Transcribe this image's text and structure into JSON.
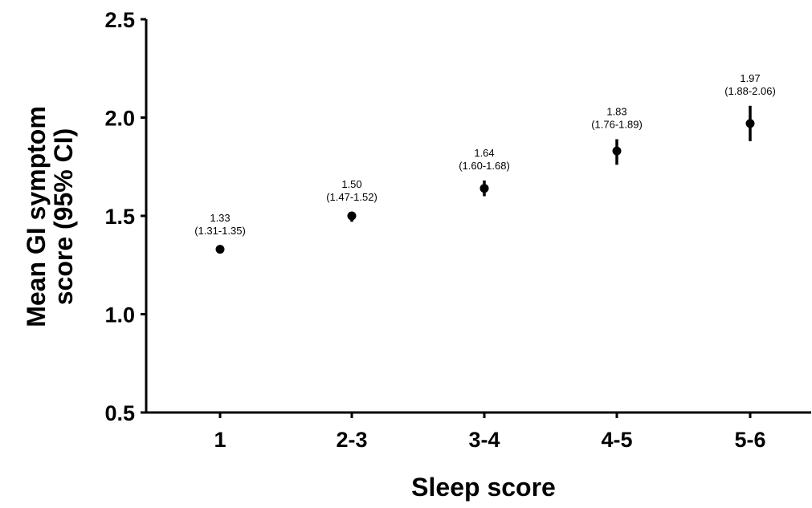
{
  "chart_data": {
    "type": "scatter",
    "title": "",
    "xlabel": "Sleep score",
    "ylabel_lines": [
      "Mean GI symptom",
      "score (95% CI)"
    ],
    "categories": [
      "1",
      "2-3",
      "3-4",
      "4-5",
      "5-6"
    ],
    "ylim": [
      0.5,
      2.5
    ],
    "yticks": [
      "0.5",
      "1.0",
      "1.5",
      "2.0",
      "2.5"
    ],
    "grid": false,
    "points": [
      {
        "x": "1",
        "mean": 1.33,
        "lo": 1.31,
        "hi": 1.35,
        "label": "1.33",
        "ci_label": "(1.31-1.35)"
      },
      {
        "x": "2-3",
        "mean": 1.5,
        "lo": 1.47,
        "hi": 1.52,
        "label": "1.50",
        "ci_label": "(1.47-1.52)"
      },
      {
        "x": "3-4",
        "mean": 1.64,
        "lo": 1.6,
        "hi": 1.68,
        "label": "1.64",
        "ci_label": "(1.60-1.68)"
      },
      {
        "x": "4-5",
        "mean": 1.83,
        "lo": 1.76,
        "hi": 1.89,
        "label": "1.83",
        "ci_label": "(1.76-1.89)"
      },
      {
        "x": "5-6",
        "mean": 1.97,
        "lo": 1.88,
        "hi": 2.06,
        "label": "1.97",
        "ci_label": "(1.88-2.06)"
      }
    ]
  }
}
